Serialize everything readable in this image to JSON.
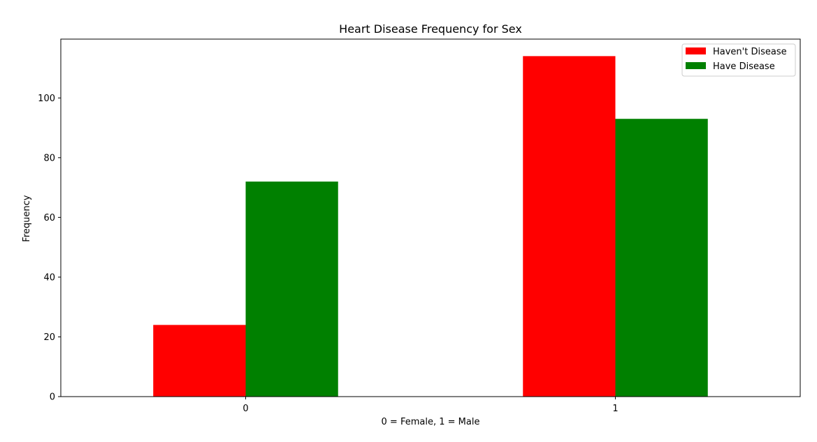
{
  "chart_data": {
    "type": "bar",
    "title": "Heart Disease Frequency for Sex",
    "xlabel": "0 = Female, 1 = Male",
    "ylabel": "Frequency",
    "categories": [
      "0",
      "1"
    ],
    "series": [
      {
        "name": "Haven't Disease",
        "color": "#ff0000",
        "values": [
          24,
          114
        ]
      },
      {
        "name": "Have Disease",
        "color": "#008000",
        "values": [
          72,
          93
        ]
      }
    ],
    "ylim": [
      0,
      119.7
    ],
    "yticks": [
      0,
      20,
      40,
      60,
      80,
      100
    ],
    "grid": false,
    "legend_position": "top-right"
  }
}
